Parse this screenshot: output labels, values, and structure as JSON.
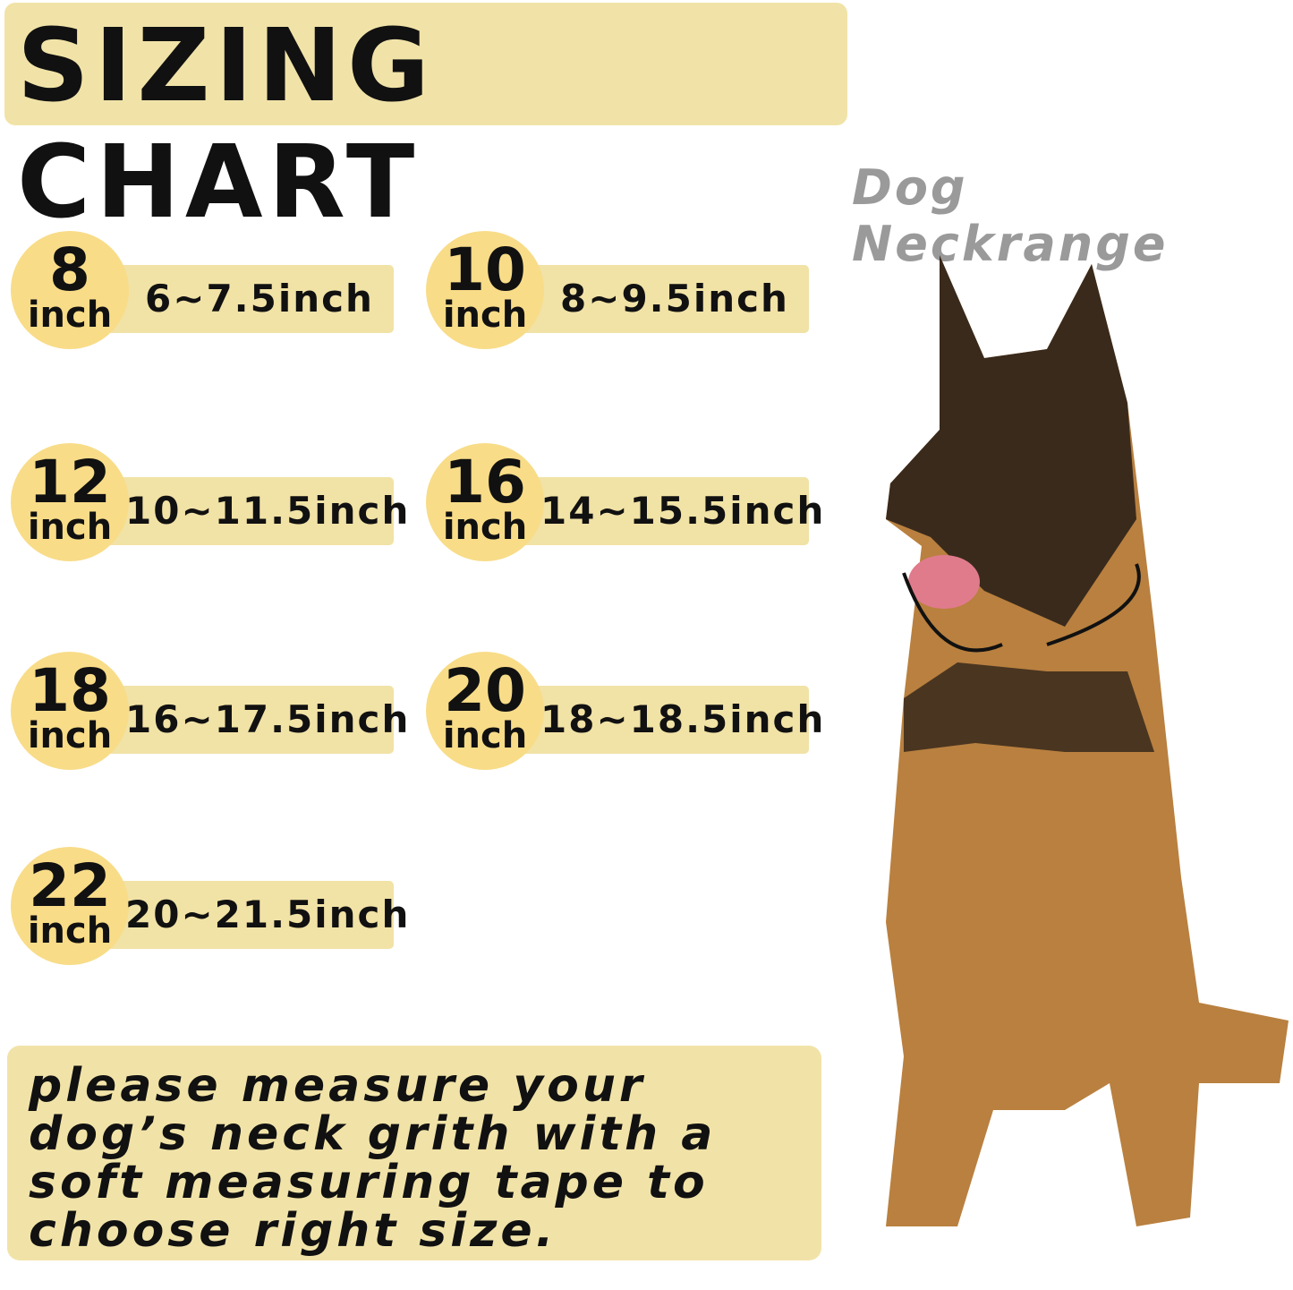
{
  "title": "SIZING CHART",
  "subtitle": "Dog Neckrange",
  "sizes": [
    {
      "size": "8",
      "unit": "inch",
      "range": "6~7.5inch"
    },
    {
      "size": "10",
      "unit": "inch",
      "range": "8~9.5inch"
    },
    {
      "size": "12",
      "unit": "inch",
      "range": "10~11.5inch"
    },
    {
      "size": "16",
      "unit": "inch",
      "range": "14~15.5inch"
    },
    {
      "size": "18",
      "unit": "inch",
      "range": "16~17.5inch"
    },
    {
      "size": "20",
      "unit": "inch",
      "range": "18~18.5inch"
    },
    {
      "size": "22",
      "unit": "inch",
      "range": "20~21.5inch"
    }
  ],
  "note": "please measure your dog’s neck grith with a soft measuring tape to choose right size.",
  "colors": {
    "badge": "#f8dc88",
    "bar": "#f1e2a6",
    "panel": "#f1e3a8"
  }
}
